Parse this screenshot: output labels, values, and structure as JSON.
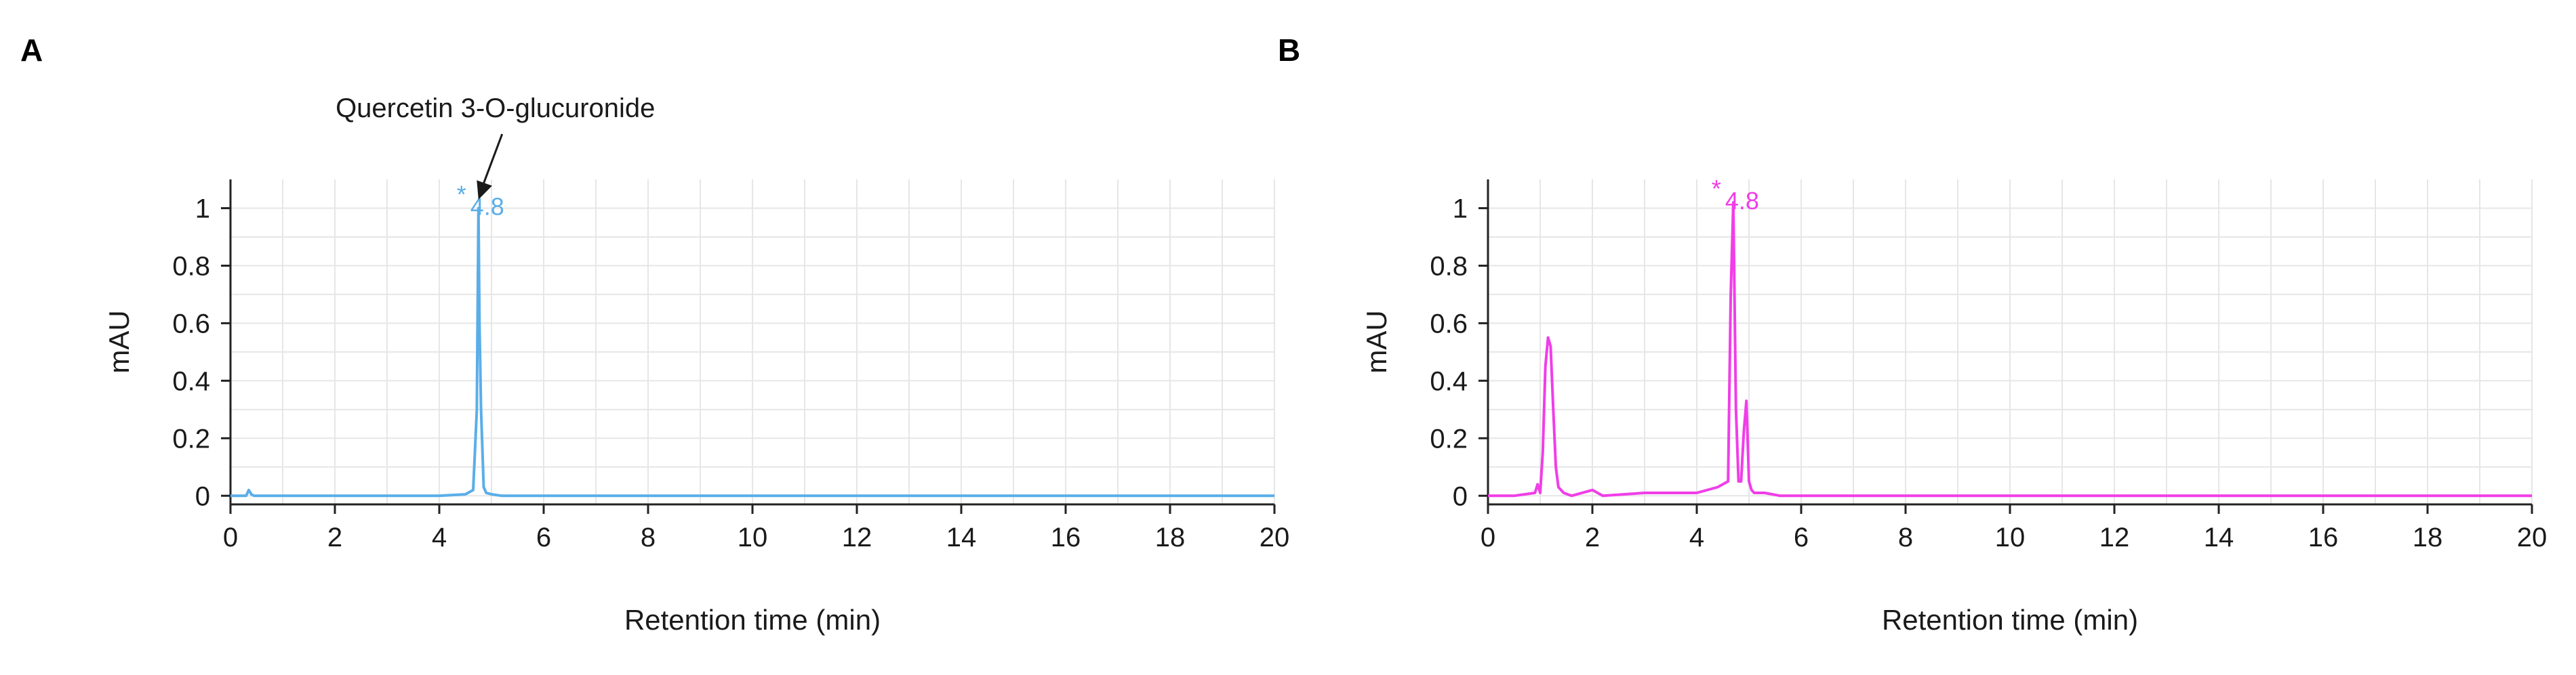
{
  "colors": {
    "panel_a": "#5aaee8",
    "panel_b": "#f03ee8",
    "grid": "#e6e6e6",
    "axis": "#222222",
    "annotation": "#1a1a1a"
  },
  "chart_data": [
    {
      "type": "line",
      "panel_label": "A",
      "xlabel": "Retention time (min)",
      "ylabel": "mAU",
      "xlim": [
        0,
        20
      ],
      "ylim": [
        -0.03,
        1.1
      ],
      "xticks": [
        0,
        2,
        4,
        6,
        8,
        10,
        12,
        14,
        16,
        18,
        20
      ],
      "yticks": [
        0,
        0.2,
        0.4,
        0.6,
        0.8,
        1
      ],
      "ytick_labels": [
        "0",
        "0.2",
        "0.4",
        "0.6",
        "0.8",
        "1"
      ],
      "grid": true,
      "color": "#5aaee8",
      "series": [
        {
          "x": [
            0,
            0.3,
            0.35,
            0.4,
            0.45,
            1,
            2,
            3,
            4,
            4.5,
            4.65,
            4.72,
            4.75,
            4.77,
            4.8,
            4.85,
            4.9,
            5.0,
            5.2,
            6,
            8,
            10,
            12,
            14,
            16,
            18,
            20
          ],
          "y": [
            0,
            0,
            0.02,
            0.005,
            0,
            0,
            0,
            0,
            0,
            0.005,
            0.02,
            0.3,
            1.0,
            0.6,
            0.3,
            0.03,
            0.01,
            0.005,
            0,
            0,
            0,
            0,
            0,
            0,
            0,
            0,
            0
          ]
        }
      ],
      "peak_label": {
        "x": 4.75,
        "y": 1.0,
        "marker": "*",
        "text": "4.8"
      },
      "annotation": {
        "text": "Quercetin 3-O-glucuronide",
        "arrow_to_x": 4.75,
        "arrow_to_y": 1.03
      }
    },
    {
      "type": "line",
      "panel_label": "B",
      "xlabel": "Retention time (min)",
      "ylabel": "mAU",
      "xlim": [
        0,
        20
      ],
      "ylim": [
        -0.03,
        1.1
      ],
      "xticks": [
        0,
        2,
        4,
        6,
        8,
        10,
        12,
        14,
        16,
        18,
        20
      ],
      "yticks": [
        0,
        0.2,
        0.4,
        0.6,
        0.8,
        1
      ],
      "ytick_labels": [
        "0",
        "0.2",
        "0.4",
        "0.6",
        "0.8",
        "1"
      ],
      "grid": true,
      "color": "#f03ee8",
      "series": [
        {
          "x": [
            0,
            0.5,
            0.9,
            0.95,
            1.0,
            1.05,
            1.1,
            1.15,
            1.2,
            1.25,
            1.3,
            1.35,
            1.45,
            1.6,
            2.0,
            2.1,
            2.2,
            3.0,
            4.0,
            4.4,
            4.5,
            4.6,
            4.65,
            4.7,
            4.75,
            4.8,
            4.85,
            4.9,
            4.95,
            5.0,
            5.05,
            5.1,
            5.3,
            5.6,
            6,
            8,
            10,
            12,
            14,
            16,
            18,
            20
          ],
          "y": [
            0,
            0,
            0.01,
            0.04,
            0.01,
            0.15,
            0.45,
            0.55,
            0.52,
            0.3,
            0.1,
            0.03,
            0.01,
            0,
            0.02,
            0.01,
            0,
            0.01,
            0.01,
            0.03,
            0.04,
            0.05,
            0.7,
            1.02,
            0.3,
            0.05,
            0.05,
            0.22,
            0.33,
            0.05,
            0.02,
            0.01,
            0.01,
            0,
            0,
            0,
            0,
            0,
            0,
            0,
            0,
            0
          ]
        }
      ],
      "peak_label": {
        "x": 4.7,
        "y": 1.02,
        "marker": "*",
        "text": "4.8"
      }
    }
  ]
}
